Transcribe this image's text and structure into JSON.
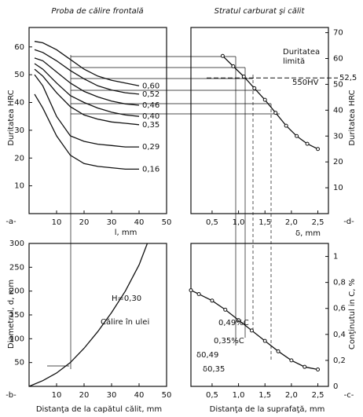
{
  "chart_data": [
    {
      "type": "line",
      "title": "Proba de călire frontală",
      "xlabel": "l, mm",
      "ylabel": "Duritatea HRC",
      "panel_label": "-a-",
      "x": [
        2,
        5,
        10,
        15,
        20,
        25,
        30,
        35,
        40
      ],
      "series": [
        {
          "name": "0,60",
          "color": "#111",
          "values": [
            62,
            61.5,
            59,
            55.5,
            52,
            49.5,
            48,
            47,
            46
          ]
        },
        {
          "name": "0,52",
          "color": "#111",
          "values": [
            59,
            58,
            55,
            51.5,
            48.5,
            46,
            44.5,
            43.5,
            43
          ]
        },
        {
          "name": "0,46",
          "color": "#111",
          "values": [
            56,
            55,
            51,
            47,
            44,
            42,
            40.5,
            39.5,
            39
          ]
        },
        {
          "name": "0,40",
          "color": "#111",
          "values": [
            54,
            52,
            47,
            42.5,
            40,
            38,
            36.5,
            35.5,
            35
          ]
        },
        {
          "name": "0,35",
          "color": "#111",
          "values": [
            52,
            49.5,
            43.5,
            38.5,
            35.5,
            34,
            33,
            32.5,
            32
          ]
        },
        {
          "name": "0,29",
          "color": "#111",
          "values": [
            50,
            46,
            35,
            28,
            26,
            25,
            24.5,
            24,
            24
          ]
        },
        {
          "name": "0,16",
          "color": "#111",
          "values": [
            43,
            38,
            28,
            21,
            18,
            17,
            16.5,
            16,
            16
          ]
        }
      ],
      "xlim": [
        0,
        50
      ],
      "xticks": [
        10,
        20,
        30,
        40,
        50
      ],
      "ylim": [
        0,
        67
      ],
      "yticks": [
        10,
        20,
        30,
        40,
        50,
        60
      ]
    },
    {
      "type": "line",
      "title": "Stratul carburat şi călit",
      "xlabel": "δ, mm",
      "ylabel": "Duritatea HRC",
      "panel_label": "-d-",
      "x": [
        0.7,
        0.9,
        1.1,
        1.3,
        1.5,
        1.7,
        1.9,
        2.1,
        2.3,
        2.5
      ],
      "series": [
        {
          "color": "#111",
          "values": [
            61,
            57,
            53,
            48.5,
            44,
            39,
            34,
            30,
            27,
            25
          ]
        }
      ],
      "markers": true,
      "hlines": [
        {
          "value": 52.5,
          "label": "52,5"
        }
      ],
      "annotations": [
        "Duritatea",
        "limită",
        "550HV"
      ],
      "xlim": [
        0.1,
        2.7
      ],
      "xticks": [
        {
          "value": 0.5,
          "label": "0,5"
        },
        {
          "value": 1.0,
          "label": "1,0"
        },
        {
          "value": 1.5,
          "label": "1,5"
        },
        {
          "value": 2.0,
          "label": "2,0"
        },
        {
          "value": 2.5,
          "label": "2,5"
        }
      ],
      "ylim": [
        0,
        72
      ],
      "yticks": [
        10,
        20,
        30,
        40,
        50,
        60,
        70
      ]
    },
    {
      "type": "line",
      "xlabel": "Distanţa de la capătul călit, mm",
      "ylabel": "Diametrul, d, mm",
      "panel_label": "-b-",
      "x": [
        0,
        5,
        10,
        15,
        20,
        25,
        30,
        35,
        40,
        43
      ],
      "series": [
        {
          "color": "#111",
          "values": [
            0,
            12,
            28,
            50,
            80,
            115,
            155,
            200,
            255,
            300
          ]
        }
      ],
      "annotations": [
        "H=0,30",
        "Călire în ulei"
      ],
      "xlim": [
        0,
        50
      ],
      "xticks": [
        10,
        20,
        30,
        40,
        50
      ],
      "ylim": [
        0,
        300
      ],
      "yticks": [
        50,
        100,
        150,
        200,
        250,
        300
      ]
    },
    {
      "type": "line",
      "xlabel": "Distanţa de la suprafaţă, mm",
      "ylabel": "Conţinutul in C, %",
      "panel_label": "-c-",
      "x": [
        0.1,
        0.25,
        0.5,
        0.75,
        1.0,
        1.25,
        1.5,
        1.75,
        2.0,
        2.25,
        2.5
      ],
      "series": [
        {
          "color": "#111",
          "values": [
            0.74,
            0.71,
            0.66,
            0.59,
            0.51,
            0.43,
            0.35,
            0.27,
            0.2,
            0.15,
            0.13
          ]
        }
      ],
      "markers": true,
      "annotations": [
        "0,49%C",
        "0,35%C",
        "δ0,49",
        "δ0,35"
      ],
      "xlim": [
        0.1,
        2.7
      ],
      "xticks": [
        {
          "value": 0.5,
          "label": "0,5"
        },
        {
          "value": 1.0,
          "label": "1,0"
        },
        {
          "value": 1.5,
          "label": "1,5"
        },
        {
          "value": 2.0,
          "label": "2,0"
        },
        {
          "value": 2.5,
          "label": "2,5"
        }
      ],
      "ylim": [
        0,
        1.1
      ],
      "yticks": [
        0,
        {
          "value": 0.2,
          "label": "0,2"
        },
        {
          "value": 0.4,
          "label": "0,4"
        },
        {
          "value": 0.6,
          "label": "0,6"
        },
        {
          "value": 0.8,
          "label": "0,8"
        },
        1
      ]
    }
  ]
}
